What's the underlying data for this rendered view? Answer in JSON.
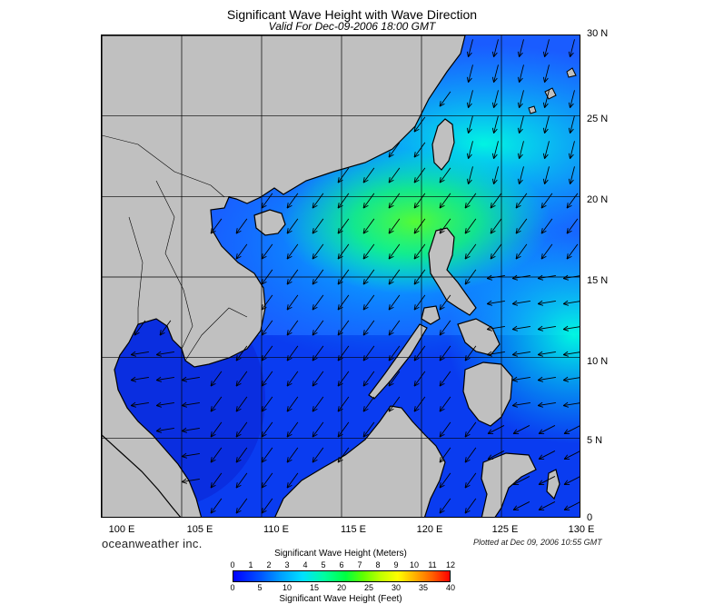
{
  "header": {
    "title": "Significant Wave Height with Wave Direction",
    "subtitle": "Valid For Dec-09-2006 18:00 GMT"
  },
  "map": {
    "lat_labels": [
      "30 N",
      "25 N",
      "20 N",
      "15 N",
      "10 N",
      "5 N",
      "0"
    ],
    "lon_labels": [
      "100 E",
      "105 E",
      "110 E",
      "115 E",
      "120 E",
      "125 E",
      "130 E"
    ],
    "lat_range": [
      0,
      30
    ],
    "lon_range": [
      100,
      130
    ],
    "grid_interval_deg": 5,
    "land_color": "#c0c0c0",
    "coast_color": "#000000",
    "wave_direction": "northeast monsoon, waves travelling toward the southwest"
  },
  "footer": {
    "brand": "oceanweather inc.",
    "plotted": "Plotted at Dec 09, 2006 10:55 GMT"
  },
  "colorbar": {
    "title_meters": "Significant Wave Height (Meters)",
    "title_feet": "Significant Wave Height (Feet)",
    "ticks_meters": [
      "0",
      "1",
      "2",
      "3",
      "4",
      "5",
      "6",
      "7",
      "8",
      "9",
      "10",
      "11",
      "12"
    ],
    "ticks_feet": [
      "0",
      "5",
      "10",
      "15",
      "20",
      "25",
      "30",
      "35",
      "40"
    ]
  }
}
